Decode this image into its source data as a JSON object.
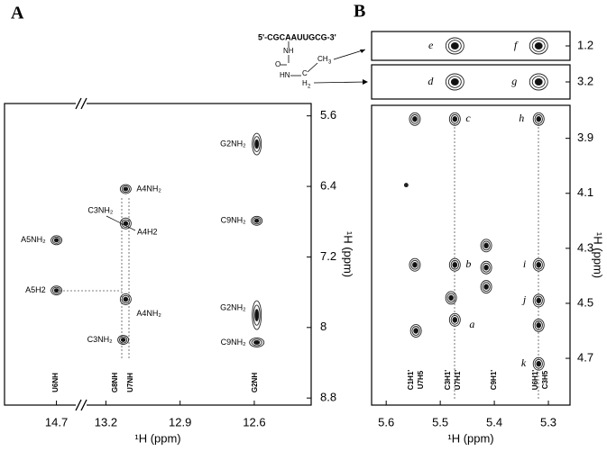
{
  "panels": [
    "A",
    "B"
  ],
  "structure": {
    "sequence": "5'-CGCAAUUGCG-3'",
    "atoms": [
      "NH",
      "O",
      "HN",
      "C",
      "CH",
      "3",
      "H",
      "2"
    ]
  },
  "chart_data": [
    {
      "type": "contour",
      "xlabel": "¹H (ppm)",
      "ylabel": "¹H (ppm)",
      "xlim": [
        14.91,
        12.37
      ],
      "xbreak": [
        14.6,
        13.3
      ],
      "xticks": [
        14.7,
        13.2,
        12.9,
        12.6
      ],
      "ylim": [
        5.46,
        8.88
      ],
      "yticks": [
        5.6,
        6.4,
        7.2,
        8.0,
        8.8
      ],
      "x": [
        14.7,
        14.7,
        13.12,
        13.12,
        13.12,
        13.13,
        12.59,
        12.59,
        12.59,
        12.59
      ],
      "y": [
        7.01,
        7.58,
        6.43,
        6.82,
        7.68,
        8.14,
        5.92,
        6.79,
        7.86,
        8.17
      ],
      "peak_labels": [
        "A5NH₂",
        "A5H2",
        "A4NH₂",
        "C3NH₂",
        "A4NH₂",
        "C3NH₂",
        "G2NH₂",
        "C9NH₂",
        "G2NH₂",
        "C9NH₂"
      ],
      "annotations": [
        "A4H2"
      ],
      "vertical_labels": [
        "U6NH",
        "G8NH",
        "U7NH",
        "G2NH"
      ]
    },
    {
      "type": "contour",
      "xlim": [
        5.627,
        5.26
      ],
      "ylim": [
        1.1,
        1.3
      ],
      "yticks": [
        1.2
      ],
      "x": [
        5.473,
        5.318
      ],
      "y": [
        1.2,
        1.2
      ],
      "peak_labels": [
        "e",
        "f"
      ]
    },
    {
      "type": "contour",
      "xlim": [
        5.627,
        5.26
      ],
      "ylim": [
        3.1,
        3.3
      ],
      "yticks": [
        3.2
      ],
      "x": [
        5.473,
        5.318
      ],
      "y": [
        3.2,
        3.2
      ],
      "peak_labels": [
        "d",
        "g"
      ]
    },
    {
      "type": "contour",
      "xlabel": "¹H (ppm)",
      "ylabel": "¹H (ppm)",
      "xlim": [
        5.627,
        5.26
      ],
      "xticks": [
        5.6,
        5.5,
        5.4,
        5.3
      ],
      "ylim": [
        3.78,
        4.87
      ],
      "yticks": [
        3.9,
        4.1,
        4.3,
        4.5,
        4.7
      ],
      "x": [
        5.473,
        5.318,
        5.547,
        5.563,
        5.547,
        5.473,
        5.318,
        5.415,
        5.415,
        5.415,
        5.48,
        5.473,
        5.545,
        5.318,
        5.318,
        5.318
      ],
      "y": [
        3.83,
        3.83,
        3.83,
        4.07,
        4.36,
        4.36,
        4.36,
        4.29,
        4.37,
        4.44,
        4.48,
        4.56,
        4.6,
        4.49,
        4.58,
        4.72
      ],
      "peak_labels": [
        "c",
        "h",
        null,
        null,
        null,
        "b",
        "i",
        null,
        null,
        null,
        null,
        "a",
        null,
        "j",
        null,
        "k"
      ],
      "vertical_labels": [
        "C1H1'",
        "U7H5",
        "C3H1'",
        "U7H1'",
        "C9H1'",
        "U6H1'",
        "C3H5"
      ]
    }
  ]
}
